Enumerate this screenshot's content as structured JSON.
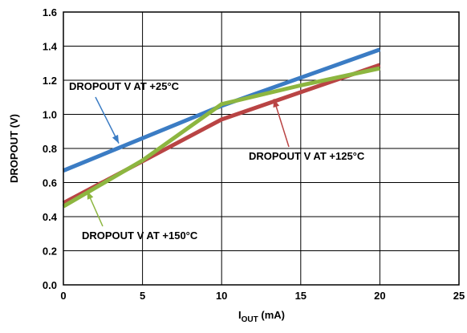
{
  "chart_data": {
    "type": "line",
    "xlabel_main": "I",
    "xlabel_sub": "OUT",
    "xlabel_unit": " (mA)",
    "ylabel": "DROPOUT (V)",
    "xlim": [
      0,
      25
    ],
    "ylim": [
      0.0,
      1.6
    ],
    "xticks": [
      0,
      5,
      10,
      15,
      20,
      25
    ],
    "xtick_labels": [
      "0",
      "5",
      "10",
      "15",
      "20",
      "25"
    ],
    "yticks": [
      0.0,
      0.2,
      0.4,
      0.6,
      0.8,
      1.0,
      1.2,
      1.4,
      1.6
    ],
    "ytick_labels": [
      "0.0",
      "0.2",
      "0.4",
      "0.6",
      "0.8",
      "1.0",
      "1.2",
      "1.4",
      "1.6"
    ],
    "grid": true,
    "series": [
      {
        "color": "#3b7cc4",
        "x": [
          0,
          10,
          20
        ],
        "y": [
          0.67,
          1.05,
          1.38
        ]
      },
      {
        "color": "#b94444",
        "x": [
          0,
          10,
          20
        ],
        "y": [
          0.48,
          0.97,
          1.29
        ]
      },
      {
        "color": "#8db640",
        "x": [
          0,
          5,
          10,
          15,
          20
        ],
        "y": [
          0.46,
          0.73,
          1.06,
          1.17,
          1.27
        ]
      }
    ],
    "annotations": [
      {
        "text": "DROPOUT V AT +25°C",
        "color": "#3b7cc4",
        "arrow_to": [
          3.5,
          0.83
        ]
      },
      {
        "text": "DROPOUT V AT +125°C",
        "color": "#b94444",
        "arrow_to": [
          13.3,
          1.09
        ]
      },
      {
        "text": "DROPOUT V AT +150°C",
        "color": "#8db640",
        "arrow_to": [
          1.5,
          0.55
        ]
      }
    ]
  }
}
